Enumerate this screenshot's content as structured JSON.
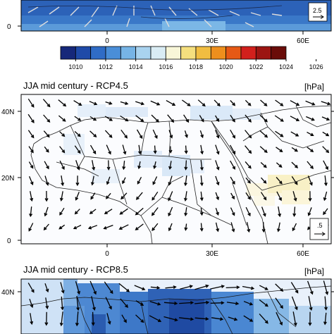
{
  "colorbar": {
    "ticks": [
      "1010",
      "1012",
      "1014",
      "1016",
      "1018",
      "1020",
      "1022",
      "1024",
      "1026"
    ],
    "colors": [
      "#16287a",
      "#1f4aa8",
      "#2f6cc6",
      "#4a8ed8",
      "#76b4e6",
      "#a9d3ef",
      "#d9ecf4",
      "#f8f6d8",
      "#f5df7e",
      "#f1bd41",
      "#ee8f1d",
      "#e65915",
      "#d2201c",
      "#9c1512",
      "#6a0c09"
    ]
  },
  "axes": {
    "lon_labels": [
      "0",
      "30E",
      "60E"
    ],
    "lat_labels_full": [
      "40N",
      "20N",
      "0"
    ],
    "top_panel_lat": "0",
    "bottom_panel_lat": "40N"
  },
  "top_panel": {
    "ref_vector_label": "2.5"
  },
  "middle_panel": {
    "title": "JJA mid century - RCP4.5",
    "unit": "[hPa]",
    "ref_vector_label": ".5"
  },
  "bottom_panel": {
    "title": "JJA mid century - RCP8.5",
    "unit": "[hPa]"
  }
}
